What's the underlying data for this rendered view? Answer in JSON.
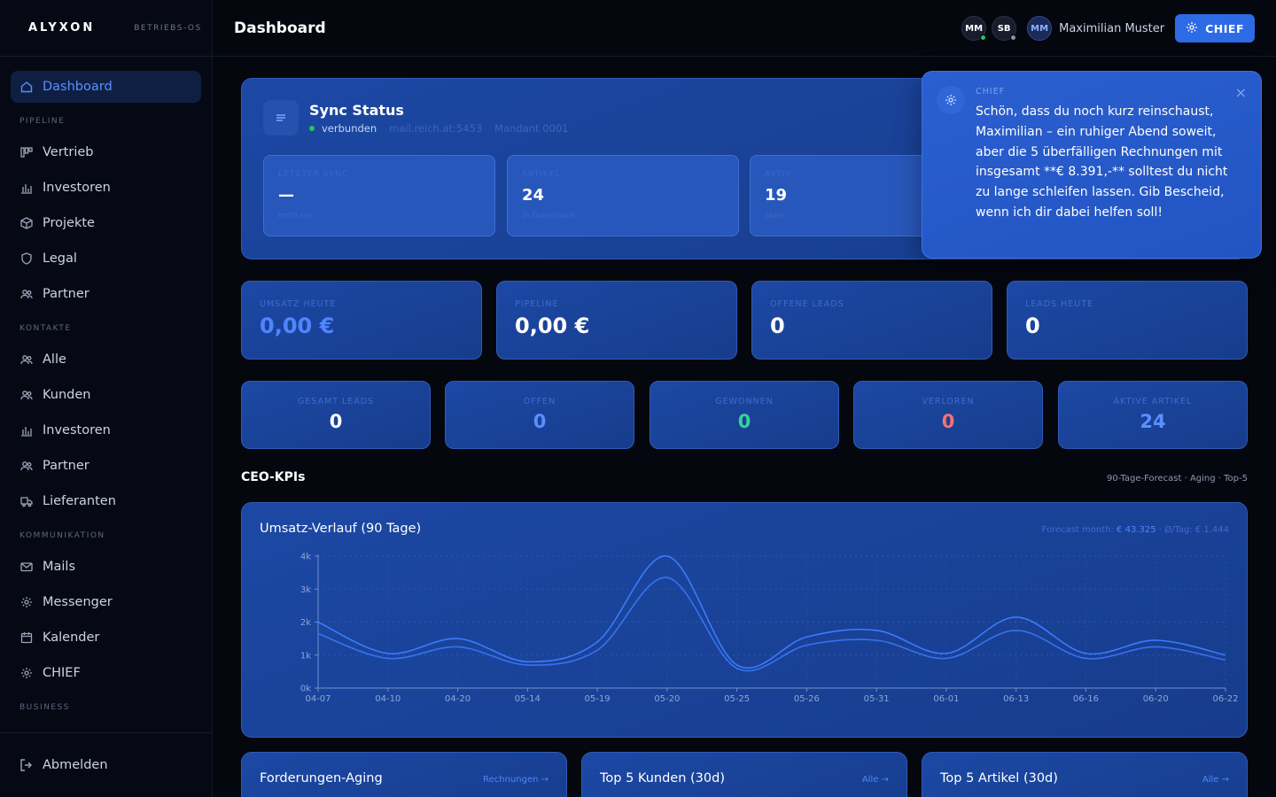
{
  "brand": {
    "logo": "ALYXON",
    "subtitle": "BETRIEBS-OS"
  },
  "sidebar": {
    "dashboard": "Dashboard",
    "pipeline_title": "PIPELINE",
    "pipeline": [
      "Vertrieb",
      "Investoren",
      "Projekte",
      "Legal",
      "Partner"
    ],
    "kontakte_title": "KONTAKTE",
    "kontakte": [
      "Alle",
      "Kunden",
      "Investoren",
      "Partner",
      "Lieferanten"
    ],
    "kommunikation_title": "KOMMUNIKATION",
    "kommunikation": [
      "Mails",
      "Messenger",
      "Kalender",
      "CHIEF"
    ],
    "business_title": "BUSINESS",
    "logout": "Abmelden"
  },
  "topbar": {
    "title": "Dashboard",
    "presence": [
      {
        "initials": "MM",
        "status_color": "#22c55e"
      },
      {
        "initials": "SB",
        "status_color": "#8a93a6"
      }
    ],
    "user_initials": "MM",
    "user_name": "Maximilian Muster",
    "chief_button": "CHIEF"
  },
  "sync": {
    "title": "Sync Status",
    "status": "verbunden",
    "host": "mail.reich.at:5453",
    "mandant": "Mandant 0001",
    "tiles": [
      {
        "label": "LETZTER SYNC",
        "value": "—",
        "sub": "noch nie"
      },
      {
        "label": "ARTIKEL",
        "value": "24",
        "sub": "in Datenbank"
      },
      {
        "label": "AKTIV",
        "value": "19",
        "sub": "aktiv"
      }
    ]
  },
  "chief_popup": {
    "label": "CHIEF",
    "message": "Schön, dass du noch kurz reinschaust, Maximilian – ein ruhiger Abend soweit, aber die 5 überfälligen Rechnungen mit insgesamt **€ 8.391,-** solltest du nicht zu lange schleifen lassen. Gib Bescheid, wenn ich dir dabei helfen soll!",
    "close": "×"
  },
  "kpis": [
    {
      "label": "UMSATZ HEUTE",
      "value": "0,00 €",
      "color": "#4f86ff"
    },
    {
      "label": "PIPELINE",
      "value": "0,00 €",
      "color": "#ffffff"
    },
    {
      "label": "OFFENE LEADS",
      "value": "0",
      "color": "#ffffff"
    },
    {
      "label": "LEADS HEUTE",
      "value": "0",
      "color": "#ffffff"
    }
  ],
  "kpis_small": [
    {
      "label": "GESAMT LEADS",
      "value": "0",
      "color": "#ffffff"
    },
    {
      "label": "OFFEN",
      "value": "0",
      "color": "#5b8fff"
    },
    {
      "label": "GEWONNEN",
      "value": "0",
      "color": "#34d399"
    },
    {
      "label": "VERLOREN",
      "value": "0",
      "color": "#f87171"
    },
    {
      "label": "AKTIVE ARTIKEL",
      "value": "24",
      "color": "#5b8fff"
    }
  ],
  "ceo": {
    "title": "CEO-KPIs",
    "meta": "90-Tage-Forecast · Aging · Top-5"
  },
  "chart_meta": {
    "prefix": "Forecast month: ",
    "forecast": "€ 43.325",
    "suffix": " · Ø/Tag: € 1.444"
  },
  "chart_data": {
    "type": "line",
    "title": "Umsatz-Verlauf (90 Tage)",
    "xlabel": "",
    "ylabel": "",
    "ylim": [
      0,
      4000
    ],
    "yticks": [
      "0k",
      "1k",
      "2k",
      "3k",
      "4k"
    ],
    "categories": [
      "04-07",
      "04-10",
      "04-20",
      "05-14",
      "05-19",
      "05-20",
      "05-25",
      "05-26",
      "05-31",
      "06-01",
      "06-13",
      "06-16",
      "06-20",
      "06-22"
    ],
    "series": [
      {
        "values": [
          2000,
          1050,
          1500,
          800,
          1400,
          4000,
          700,
          1550,
          1750,
          1050,
          2150,
          1050,
          1450,
          1000
        ],
        "color": "#3b7bff"
      },
      {
        "values": [
          1650,
          900,
          1250,
          700,
          1150,
          3350,
          600,
          1300,
          1450,
          900,
          1750,
          900,
          1250,
          850
        ],
        "color": "#3b7bff"
      }
    ],
    "grid": true
  },
  "bottom_cards": [
    {
      "title": "Forderungen-Aging",
      "link": "Rechnungen →"
    },
    {
      "title": "Top 5 Kunden (30d)",
      "link": "Alle →"
    },
    {
      "title": "Top 5 Artikel (30d)",
      "link": "Alle →"
    }
  ]
}
